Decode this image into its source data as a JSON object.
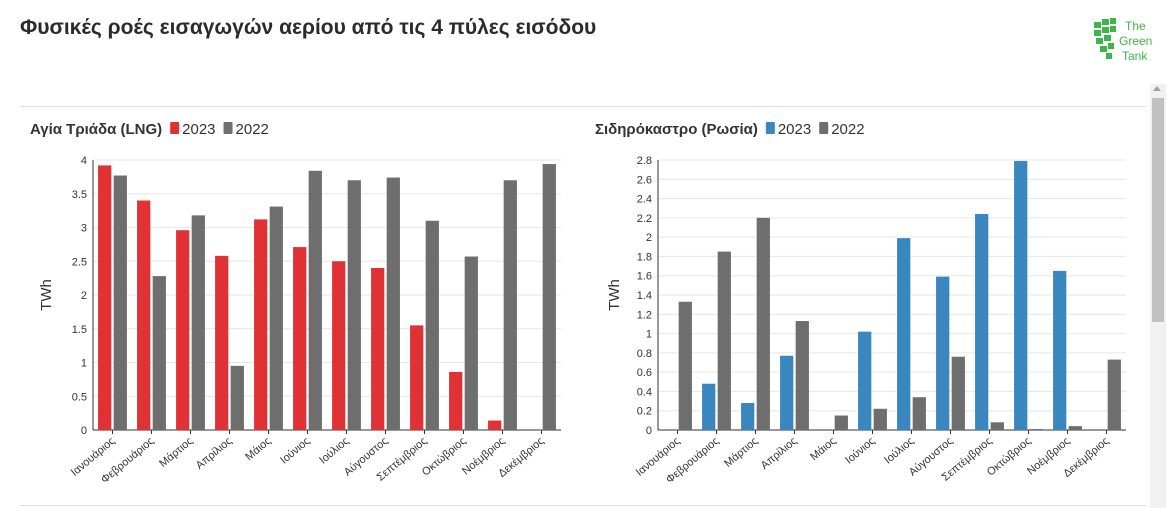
{
  "page": {
    "title": "Φυσικές ροές εισαγωγών αερίου από τις 4 πύλες εισόδου",
    "logo_lines": [
      "The",
      "Green",
      "Tank"
    ]
  },
  "colors": {
    "series_2023_left": "#e03234",
    "series_2023_right": "#3a87c0",
    "series_2022": "#6e6e6e",
    "logo_green": "#3db549"
  },
  "chart_data": [
    {
      "type": "bar",
      "title": "Αγία Τριάδα (LNG)",
      "ylabel": "TWh",
      "xlabel": "",
      "ylim": [
        0,
        4
      ],
      "yticks": [
        "0",
        "0.5",
        "1",
        "1.5",
        "2",
        "2.5",
        "3",
        "3.5",
        "4"
      ],
      "grid": true,
      "legend_position": "top (inline with title)",
      "categories": [
        "Ιανουάριος",
        "Φεβρουάριος",
        "Μάρτιος",
        "Απρίλιος",
        "Μάιος",
        "Ιούνιος",
        "Ιούλιος",
        "Αύγουστος",
        "Σεπτέμβριος",
        "Οκτώβριος",
        "Νοέμβριος",
        "Δεκέμβριος"
      ],
      "series": [
        {
          "name": "2023",
          "color": "#e03234",
          "values": [
            3.92,
            3.4,
            2.96,
            2.58,
            3.12,
            2.71,
            2.5,
            2.4,
            1.55,
            0.86,
            0.14,
            null
          ]
        },
        {
          "name": "2022",
          "color": "#6e6e6e",
          "values": [
            3.77,
            2.28,
            3.18,
            0.95,
            3.31,
            3.84,
            3.7,
            3.74,
            3.1,
            2.57,
            3.7,
            3.94
          ]
        }
      ]
    },
    {
      "type": "bar",
      "title": "Σιδηρόκαστρο (Ρωσία)",
      "ylabel": "TWh",
      "xlabel": "",
      "ylim": [
        0,
        2.8
      ],
      "yticks": [
        "0",
        "0.2",
        "0.4",
        "0.6",
        "0.8",
        "1",
        "1.2",
        "1.4",
        "1.6",
        "1.8",
        "2",
        "2.2",
        "2.4",
        "2.6",
        "2.8"
      ],
      "grid": true,
      "legend_position": "top (inline with title)",
      "categories": [
        "Ιανουάριος",
        "Φεβρουάριος",
        "Μάρτιος",
        "Απρίλιος",
        "Μάιος",
        "Ιούνιος",
        "Ιούλιος",
        "Αύγουστος",
        "Σεπτέμβριος",
        "Οκτώβριος",
        "Νοέμβριος",
        "Δεκέμβριος"
      ],
      "series": [
        {
          "name": "2023",
          "color": "#3a87c0",
          "values": [
            0,
            0.48,
            0.28,
            0.77,
            0,
            1.02,
            1.99,
            1.59,
            2.24,
            2.79,
            1.65,
            null
          ]
        },
        {
          "name": "2022",
          "color": "#6e6e6e",
          "values": [
            1.33,
            1.85,
            2.2,
            1.13,
            0.15,
            0.22,
            0.34,
            0.76,
            0.08,
            0.01,
            0.04,
            0.73
          ]
        }
      ]
    }
  ]
}
